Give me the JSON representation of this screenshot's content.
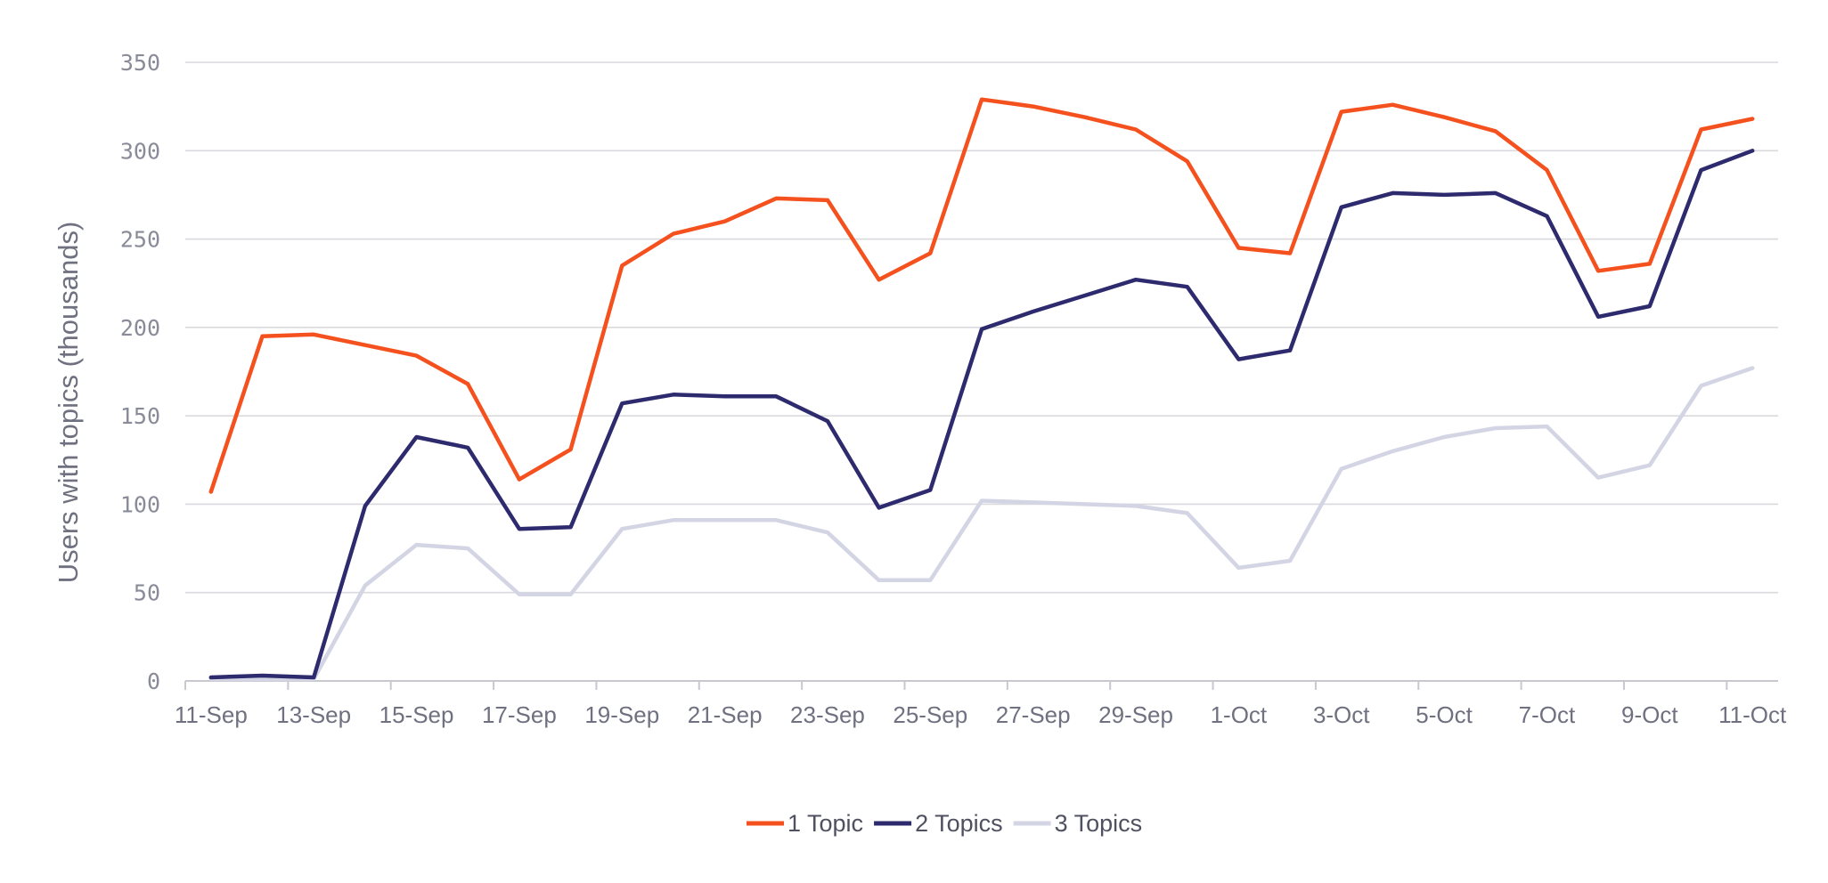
{
  "chart_data": {
    "type": "line",
    "title": "",
    "xlabel": "",
    "ylabel": "Users with topics (thousands)",
    "ylim": [
      0,
      350
    ],
    "yticks": [
      0,
      50,
      100,
      150,
      200,
      250,
      300,
      350
    ],
    "grid": true,
    "legend_position": "bottom",
    "x": [
      "11-Sep",
      "12-Sep",
      "13-Sep",
      "14-Sep",
      "15-Sep",
      "16-Sep",
      "17-Sep",
      "18-Sep",
      "19-Sep",
      "20-Sep",
      "21-Sep",
      "22-Sep",
      "23-Sep",
      "24-Sep",
      "25-Sep",
      "26-Sep",
      "27-Sep",
      "28-Sep",
      "29-Sep",
      "30-Sep",
      "1-Oct",
      "2-Oct",
      "3-Oct",
      "4-Oct",
      "5-Oct",
      "6-Oct",
      "7-Oct",
      "8-Oct",
      "9-Oct",
      "10-Oct",
      "11-Oct"
    ],
    "xtick_labels": [
      "11-Sep",
      "13-Sep",
      "15-Sep",
      "17-Sep",
      "19-Sep",
      "21-Sep",
      "23-Sep",
      "25-Sep",
      "27-Sep",
      "29-Sep",
      "1-Oct",
      "3-Oct",
      "5-Oct",
      "7-Oct",
      "9-Oct",
      "11-Oct"
    ],
    "series": [
      {
        "name": "1 Topic",
        "color": "#f4511e",
        "values": [
          107,
          195,
          196,
          190,
          184,
          168,
          114,
          131,
          235,
          253,
          260,
          273,
          272,
          227,
          242,
          329,
          325,
          319,
          312,
          294,
          245,
          242,
          322,
          326,
          319,
          311,
          289,
          232,
          236,
          312,
          318
        ]
      },
      {
        "name": "2 Topics",
        "color": "#2e2a6e",
        "values": [
          2,
          3,
          2,
          99,
          138,
          132,
          86,
          87,
          157,
          162,
          161,
          161,
          147,
          98,
          108,
          199,
          209,
          218,
          227,
          223,
          182,
          187,
          268,
          276,
          275,
          276,
          263,
          206,
          212,
          289,
          300
        ]
      },
      {
        "name": "3 Topics",
        "color": "#d4d5e4",
        "values": [
          1,
          1,
          1,
          54,
          77,
          75,
          49,
          49,
          86,
          91,
          91,
          91,
          84,
          57,
          57,
          102,
          101,
          100,
          99,
          95,
          64,
          68,
          120,
          130,
          138,
          143,
          144,
          115,
          122,
          167,
          177
        ]
      }
    ]
  }
}
